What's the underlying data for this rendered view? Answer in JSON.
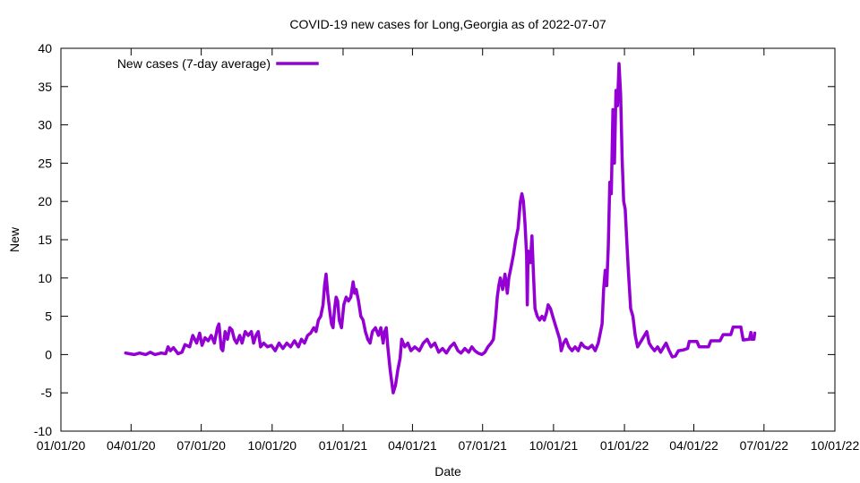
{
  "chart_data": {
    "type": "line",
    "title": "COVID-19 new cases for Long,Georgia as of 2022-07-07",
    "xlabel": "Date",
    "ylabel": "New",
    "xlim": [
      "2020-01-01",
      "2022-10-01"
    ],
    "ylim": [
      -10,
      40
    ],
    "x_ticks": [
      "01/01/20",
      "04/01/20",
      "07/01/20",
      "10/01/20",
      "01/01/21",
      "04/01/21",
      "07/01/21",
      "10/01/21",
      "01/01/22",
      "04/01/22",
      "07/01/22",
      "10/01/22"
    ],
    "y_ticks": [
      -10,
      -5,
      0,
      5,
      10,
      15,
      20,
      25,
      30,
      35,
      40
    ],
    "grid": false,
    "legend_position": "top-left",
    "series": [
      {
        "name": "New cases (7-day average)",
        "color": "#9400d3",
        "points": [
          [
            "2020-03-25",
            0.2
          ],
          [
            "2020-03-30",
            0.1
          ],
          [
            "2020-04-05",
            0.0
          ],
          [
            "2020-04-12",
            0.2
          ],
          [
            "2020-04-20",
            0.0
          ],
          [
            "2020-04-26",
            0.3
          ],
          [
            "2020-05-02",
            0.0
          ],
          [
            "2020-05-10",
            0.2
          ],
          [
            "2020-05-16",
            0.1
          ],
          [
            "2020-05-19",
            1.0
          ],
          [
            "2020-05-22",
            0.5
          ],
          [
            "2020-05-26",
            0.9
          ],
          [
            "2020-06-01",
            0.1
          ],
          [
            "2020-06-06",
            0.3
          ],
          [
            "2020-06-10",
            1.3
          ],
          [
            "2020-06-16",
            1.0
          ],
          [
            "2020-06-20",
            2.5
          ],
          [
            "2020-06-25",
            1.5
          ],
          [
            "2020-06-29",
            2.8
          ],
          [
            "2020-07-02",
            1.2
          ],
          [
            "2020-07-06",
            2.2
          ],
          [
            "2020-07-10",
            1.8
          ],
          [
            "2020-07-14",
            2.5
          ],
          [
            "2020-07-18",
            1.5
          ],
          [
            "2020-07-22",
            3.5
          ],
          [
            "2020-07-24",
            4.0
          ],
          [
            "2020-07-27",
            0.8
          ],
          [
            "2020-07-29",
            0.5
          ],
          [
            "2020-08-01",
            3.0
          ],
          [
            "2020-08-04",
            2.0
          ],
          [
            "2020-08-07",
            3.5
          ],
          [
            "2020-08-10",
            3.2
          ],
          [
            "2020-08-13",
            2.0
          ],
          [
            "2020-08-16",
            1.5
          ],
          [
            "2020-08-20",
            2.5
          ],
          [
            "2020-08-23",
            1.5
          ],
          [
            "2020-08-27",
            3.0
          ],
          [
            "2020-08-31",
            2.5
          ],
          [
            "2020-09-04",
            3.0
          ],
          [
            "2020-09-07",
            1.5
          ],
          [
            "2020-09-10",
            2.5
          ],
          [
            "2020-09-13",
            3.0
          ],
          [
            "2020-09-16",
            1.0
          ],
          [
            "2020-09-20",
            1.5
          ],
          [
            "2020-09-25",
            1.0
          ],
          [
            "2020-09-30",
            1.2
          ],
          [
            "2020-10-05",
            0.5
          ],
          [
            "2020-10-10",
            1.5
          ],
          [
            "2020-10-15",
            0.8
          ],
          [
            "2020-10-20",
            1.5
          ],
          [
            "2020-10-25",
            1.0
          ],
          [
            "2020-10-30",
            1.8
          ],
          [
            "2020-11-04",
            1.0
          ],
          [
            "2020-11-08",
            2.0
          ],
          [
            "2020-11-12",
            1.5
          ],
          [
            "2020-11-16",
            2.5
          ],
          [
            "2020-11-20",
            2.8
          ],
          [
            "2020-11-24",
            3.5
          ],
          [
            "2020-11-27",
            3.0
          ],
          [
            "2020-11-30",
            4.5
          ],
          [
            "2020-12-03",
            5.0
          ],
          [
            "2020-12-06",
            6.5
          ],
          [
            "2020-12-08",
            9.0
          ],
          [
            "2020-12-10",
            10.5
          ],
          [
            "2020-12-12",
            8.0
          ],
          [
            "2020-12-15",
            5.5
          ],
          [
            "2020-12-17",
            4.0
          ],
          [
            "2020-12-19",
            3.5
          ],
          [
            "2020-12-21",
            6.0
          ],
          [
            "2020-12-23",
            7.5
          ],
          [
            "2020-12-25",
            7.0
          ],
          [
            "2020-12-27",
            4.5
          ],
          [
            "2020-12-30",
            3.5
          ],
          [
            "2021-01-02",
            6.5
          ],
          [
            "2021-01-05",
            7.5
          ],
          [
            "2021-01-08",
            7.0
          ],
          [
            "2021-01-11",
            7.5
          ],
          [
            "2021-01-14",
            9.5
          ],
          [
            "2021-01-16",
            8.0
          ],
          [
            "2021-01-18",
            8.5
          ],
          [
            "2021-01-21",
            7.0
          ],
          [
            "2021-01-24",
            5.0
          ],
          [
            "2021-01-27",
            4.5
          ],
          [
            "2021-01-30",
            3.0
          ],
          [
            "2021-02-02",
            2.0
          ],
          [
            "2021-02-05",
            1.5
          ],
          [
            "2021-02-08",
            3.0
          ],
          [
            "2021-02-12",
            3.5
          ],
          [
            "2021-02-16",
            2.5
          ],
          [
            "2021-02-19",
            3.5
          ],
          [
            "2021-02-22",
            1.5
          ],
          [
            "2021-02-24",
            3.0
          ],
          [
            "2021-02-26",
            3.5
          ],
          [
            "2021-02-28",
            1.0
          ],
          [
            "2021-03-03",
            -2.0
          ],
          [
            "2021-03-05",
            -3.5
          ],
          [
            "2021-03-07",
            -5.0
          ],
          [
            "2021-03-10",
            -4.0
          ],
          [
            "2021-03-13",
            -2.0
          ],
          [
            "2021-03-16",
            -0.5
          ],
          [
            "2021-03-18",
            2.0
          ],
          [
            "2021-03-22",
            1.0
          ],
          [
            "2021-03-26",
            1.5
          ],
          [
            "2021-03-30",
            0.5
          ],
          [
            "2021-04-04",
            1.0
          ],
          [
            "2021-04-10",
            0.5
          ],
          [
            "2021-04-15",
            1.5
          ],
          [
            "2021-04-20",
            2.0
          ],
          [
            "2021-04-25",
            1.0
          ],
          [
            "2021-04-30",
            1.5
          ],
          [
            "2021-05-05",
            0.3
          ],
          [
            "2021-05-10",
            0.8
          ],
          [
            "2021-05-15",
            0.2
          ],
          [
            "2021-05-20",
            1.0
          ],
          [
            "2021-05-25",
            1.5
          ],
          [
            "2021-05-30",
            0.5
          ],
          [
            "2021-06-03",
            0.2
          ],
          [
            "2021-06-08",
            0.8
          ],
          [
            "2021-06-13",
            0.3
          ],
          [
            "2021-06-17",
            1.0
          ],
          [
            "2021-06-21",
            0.5
          ],
          [
            "2021-06-25",
            0.2
          ],
          [
            "2021-06-30",
            0.0
          ],
          [
            "2021-07-04",
            0.3
          ],
          [
            "2021-07-08",
            1.0
          ],
          [
            "2021-07-12",
            1.5
          ],
          [
            "2021-07-15",
            2.0
          ],
          [
            "2021-07-18",
            5.0
          ],
          [
            "2021-07-20",
            7.5
          ],
          [
            "2021-07-22",
            9.0
          ],
          [
            "2021-07-24",
            10.0
          ],
          [
            "2021-07-27",
            8.5
          ],
          [
            "2021-07-30",
            10.5
          ],
          [
            "2021-08-02",
            8.0
          ],
          [
            "2021-08-04",
            10.0
          ],
          [
            "2021-08-07",
            11.5
          ],
          [
            "2021-08-10",
            13.0
          ],
          [
            "2021-08-13",
            15.0
          ],
          [
            "2021-08-16",
            16.5
          ],
          [
            "2021-08-19",
            20.0
          ],
          [
            "2021-08-21",
            21.0
          ],
          [
            "2021-08-23",
            20.0
          ],
          [
            "2021-08-25",
            17.0
          ],
          [
            "2021-08-27",
            13.0
          ],
          [
            "2021-08-28",
            6.5
          ],
          [
            "2021-08-29",
            13.5
          ],
          [
            "2021-09-01",
            12.0
          ],
          [
            "2021-09-03",
            15.5
          ],
          [
            "2021-09-05",
            10.5
          ],
          [
            "2021-09-07",
            6.0
          ],
          [
            "2021-09-10",
            5.0
          ],
          [
            "2021-09-13",
            4.5
          ],
          [
            "2021-09-16",
            5.0
          ],
          [
            "2021-09-19",
            4.5
          ],
          [
            "2021-09-22",
            5.5
          ],
          [
            "2021-09-24",
            6.5
          ],
          [
            "2021-09-27",
            6.0
          ],
          [
            "2021-09-30",
            5.0
          ],
          [
            "2021-10-03",
            4.0
          ],
          [
            "2021-10-06",
            3.0
          ],
          [
            "2021-10-09",
            2.0
          ],
          [
            "2021-10-11",
            0.5
          ],
          [
            "2021-10-14",
            1.5
          ],
          [
            "2021-10-17",
            2.0
          ],
          [
            "2021-10-21",
            1.0
          ],
          [
            "2021-10-25",
            0.5
          ],
          [
            "2021-10-29",
            1.0
          ],
          [
            "2021-11-02",
            0.5
          ],
          [
            "2021-11-06",
            1.5
          ],
          [
            "2021-11-10",
            1.0
          ],
          [
            "2021-11-15",
            0.8
          ],
          [
            "2021-11-20",
            1.2
          ],
          [
            "2021-11-24",
            0.5
          ],
          [
            "2021-11-28",
            1.5
          ],
          [
            "2021-12-01",
            3.0
          ],
          [
            "2021-12-03",
            4.0
          ],
          [
            "2021-12-05",
            8.5
          ],
          [
            "2021-12-07",
            11.0
          ],
          [
            "2021-12-09",
            9.0
          ],
          [
            "2021-12-11",
            14.0
          ],
          [
            "2021-12-13",
            22.5
          ],
          [
            "2021-12-15",
            21.0
          ],
          [
            "2021-12-17",
            32.0
          ],
          [
            "2021-12-19",
            25.0
          ],
          [
            "2021-12-21",
            34.5
          ],
          [
            "2021-12-23",
            32.5
          ],
          [
            "2021-12-25",
            38.0
          ],
          [
            "2021-12-27",
            34.0
          ],
          [
            "2021-12-29",
            25.5
          ],
          [
            "2021-12-31",
            20.0
          ],
          [
            "2022-01-02",
            19.0
          ],
          [
            "2022-01-04",
            15.0
          ],
          [
            "2022-01-06",
            11.0
          ],
          [
            "2022-01-09",
            6.0
          ],
          [
            "2022-01-12",
            5.0
          ],
          [
            "2022-01-15",
            2.5
          ],
          [
            "2022-01-18",
            1.0
          ],
          [
            "2022-01-21",
            1.5
          ],
          [
            "2022-01-24",
            2.0
          ],
          [
            "2022-01-27",
            2.5
          ],
          [
            "2022-01-30",
            3.0
          ],
          [
            "2022-02-02",
            1.5
          ],
          [
            "2022-02-05",
            1.0
          ],
          [
            "2022-02-09",
            0.5
          ],
          [
            "2022-02-13",
            1.0
          ],
          [
            "2022-02-17",
            0.3
          ],
          [
            "2022-02-21",
            1.0
          ],
          [
            "2022-02-24",
            1.5
          ],
          [
            "2022-02-28",
            0.5
          ],
          [
            "2022-03-04",
            -0.3
          ],
          [
            "2022-03-08",
            -0.2
          ],
          [
            "2022-03-12",
            0.5
          ],
          [
            "2022-03-18",
            0.6
          ],
          [
            "2022-03-24",
            0.8
          ],
          [
            "2022-03-26",
            1.7
          ],
          [
            "2022-04-05",
            1.7
          ],
          [
            "2022-04-08",
            1.0
          ],
          [
            "2022-04-20",
            1.0
          ],
          [
            "2022-04-23",
            1.8
          ],
          [
            "2022-05-05",
            1.8
          ],
          [
            "2022-05-09",
            2.6
          ],
          [
            "2022-05-19",
            2.6
          ],
          [
            "2022-05-22",
            3.6
          ],
          [
            "2022-06-01",
            3.6
          ],
          [
            "2022-06-04",
            1.9
          ],
          [
            "2022-06-12",
            2.0
          ],
          [
            "2022-06-14",
            2.9
          ],
          [
            "2022-06-15",
            2.0
          ],
          [
            "2022-06-18",
            2.0
          ],
          [
            "2022-06-19",
            2.8
          ]
        ]
      }
    ]
  }
}
